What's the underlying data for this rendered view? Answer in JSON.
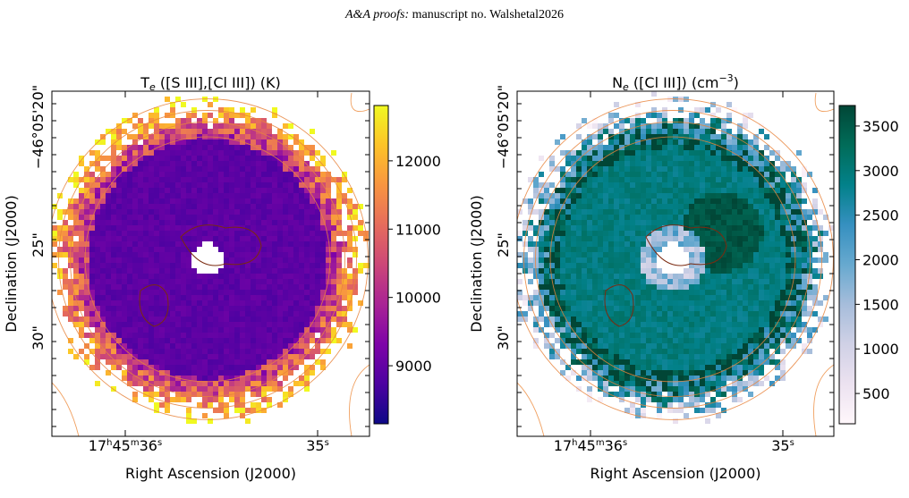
{
  "header": {
    "journal": "A&A proofs:",
    "manuscript": "manuscript no. Walshetal2026"
  },
  "panels": [
    {
      "title": {
        "symbol": "T",
        "subscript": "e",
        "text": " ([S III],[Cl III]) (K)"
      },
      "xlabel": "Right Ascension (J2000)",
      "ylabel": "Declination (J2000)",
      "xticklabels": [
        [
          [
            "17",
            "h"
          ],
          [
            "45",
            "m"
          ],
          [
            "36",
            "s"
          ]
        ],
        [
          [
            "35",
            "s"
          ]
        ]
      ],
      "yticklabels": [
        "−46°05'20\"",
        "25\"",
        "30\""
      ],
      "colorbar": {
        "colormap": "plasma",
        "lim": [
          8150,
          12810
        ],
        "ticks": [
          9000,
          10000,
          11000,
          12000
        ]
      }
    },
    {
      "title": {
        "symbol": "N",
        "subscript": "e",
        "text": " ([Cl III]) (cm",
        "superscript": "−3",
        "closing": ")"
      },
      "xlabel": "Right Ascension (J2000)",
      "ylabel": "Declination (J2000)",
      "xticklabels": [
        [
          [
            "17",
            "h"
          ],
          [
            "45",
            "m"
          ],
          [
            "36",
            "s"
          ]
        ],
        [
          [
            "35",
            "s"
          ]
        ]
      ],
      "yticklabels": [
        "−46°05'20\"",
        "25\"",
        "30\""
      ],
      "colorbar": {
        "colormap": "PuBuGn",
        "lim": [
          160,
          3730
        ],
        "ticks": [
          500,
          1000,
          1500,
          2000,
          2500,
          3000,
          3500
        ]
      }
    }
  ]
}
